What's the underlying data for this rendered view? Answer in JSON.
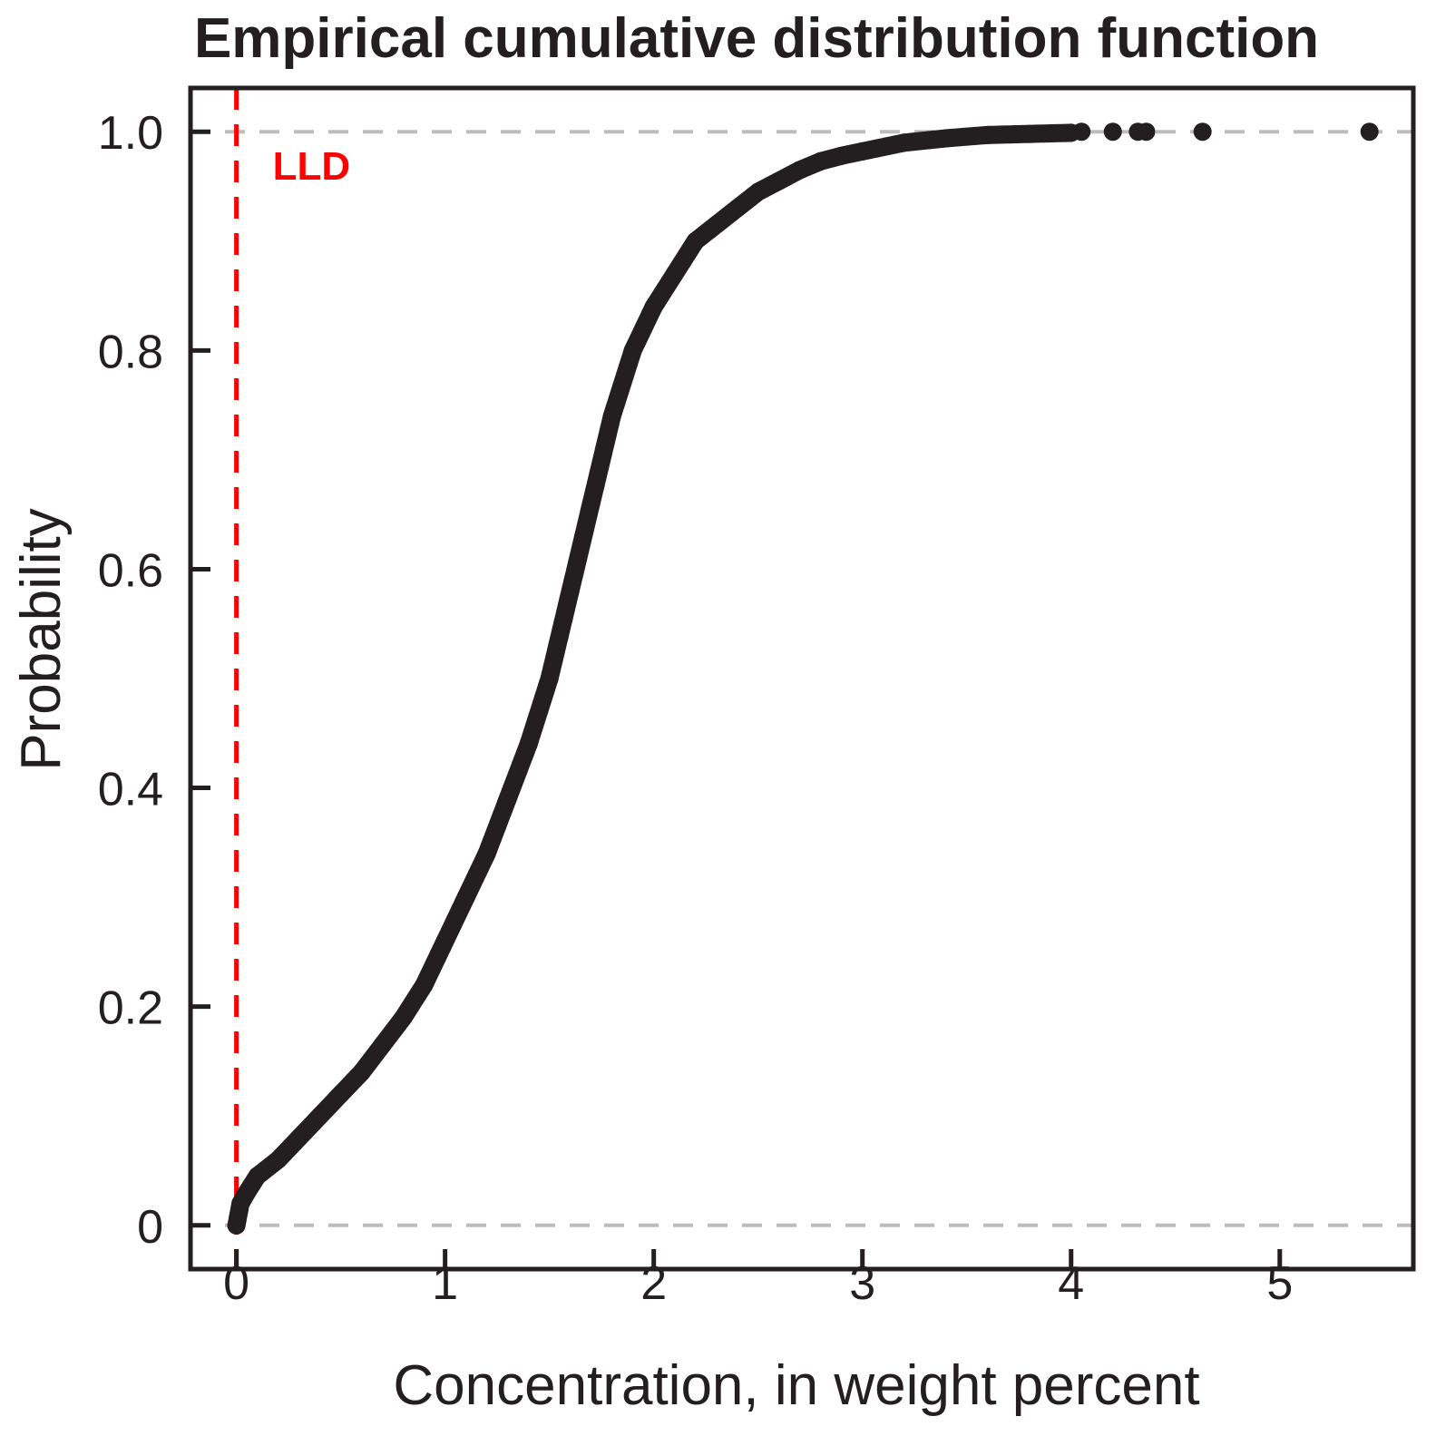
{
  "chart_data": {
    "type": "scatter",
    "title": "Empirical cumulative distribution function",
    "xlabel": "Concentration, in weight percent",
    "ylabel": "Probability",
    "xlim": [
      -0.22,
      5.64
    ],
    "ylim": [
      -0.04,
      1.04
    ],
    "xticks": [
      {
        "value": 0,
        "label": "0"
      },
      {
        "value": 1,
        "label": "1"
      },
      {
        "value": 2,
        "label": "2"
      },
      {
        "value": 3,
        "label": "3"
      },
      {
        "value": 4,
        "label": "4"
      },
      {
        "value": 5,
        "label": "5"
      }
    ],
    "yticks": [
      {
        "value": 0,
        "label": "0"
      },
      {
        "value": 0.2,
        "label": "0.2"
      },
      {
        "value": 0.4,
        "label": "0.4"
      },
      {
        "value": 0.6,
        "label": "0.6"
      },
      {
        "value": 0.8,
        "label": "0.8"
      },
      {
        "value": 1.0,
        "label": "1.0"
      }
    ],
    "reference_lines": [
      {
        "axis": "y",
        "value": 0,
        "style": "dashed",
        "color": "#bdbdbd"
      },
      {
        "axis": "y",
        "value": 1,
        "style": "dashed",
        "color": "#bdbdbd"
      }
    ],
    "lld": {
      "x": 0.0,
      "label": "LLD",
      "color": "#ff0000",
      "style": "dashed"
    },
    "point_color": "#231f20",
    "curve_points": [
      [
        0.0,
        0.0
      ],
      [
        0.02,
        0.02
      ],
      [
        0.05,
        0.03
      ],
      [
        0.1,
        0.045
      ],
      [
        0.2,
        0.06
      ],
      [
        0.3,
        0.08
      ],
      [
        0.4,
        0.1
      ],
      [
        0.5,
        0.12
      ],
      [
        0.6,
        0.14
      ],
      [
        0.7,
        0.165
      ],
      [
        0.8,
        0.19
      ],
      [
        0.9,
        0.22
      ],
      [
        1.0,
        0.26
      ],
      [
        1.1,
        0.3
      ],
      [
        1.2,
        0.34
      ],
      [
        1.3,
        0.39
      ],
      [
        1.4,
        0.44
      ],
      [
        1.5,
        0.5
      ],
      [
        1.6,
        0.58
      ],
      [
        1.7,
        0.66
      ],
      [
        1.8,
        0.74
      ],
      [
        1.9,
        0.8
      ],
      [
        2.0,
        0.84
      ],
      [
        2.1,
        0.87
      ],
      [
        2.2,
        0.9
      ],
      [
        2.3,
        0.915
      ],
      [
        2.4,
        0.93
      ],
      [
        2.5,
        0.945
      ],
      [
        2.6,
        0.955
      ],
      [
        2.7,
        0.965
      ],
      [
        2.8,
        0.973
      ],
      [
        2.9,
        0.978
      ],
      [
        3.0,
        0.982
      ],
      [
        3.2,
        0.99
      ],
      [
        3.4,
        0.994
      ],
      [
        3.6,
        0.997
      ],
      [
        3.8,
        0.998
      ],
      [
        4.0,
        0.999
      ]
    ],
    "outlier_points": [
      [
        4.05,
        1.0
      ],
      [
        4.2,
        1.0
      ],
      [
        4.32,
        1.0
      ],
      [
        4.36,
        1.0
      ],
      [
        4.63,
        1.0
      ],
      [
        5.43,
        1.0
      ]
    ]
  }
}
